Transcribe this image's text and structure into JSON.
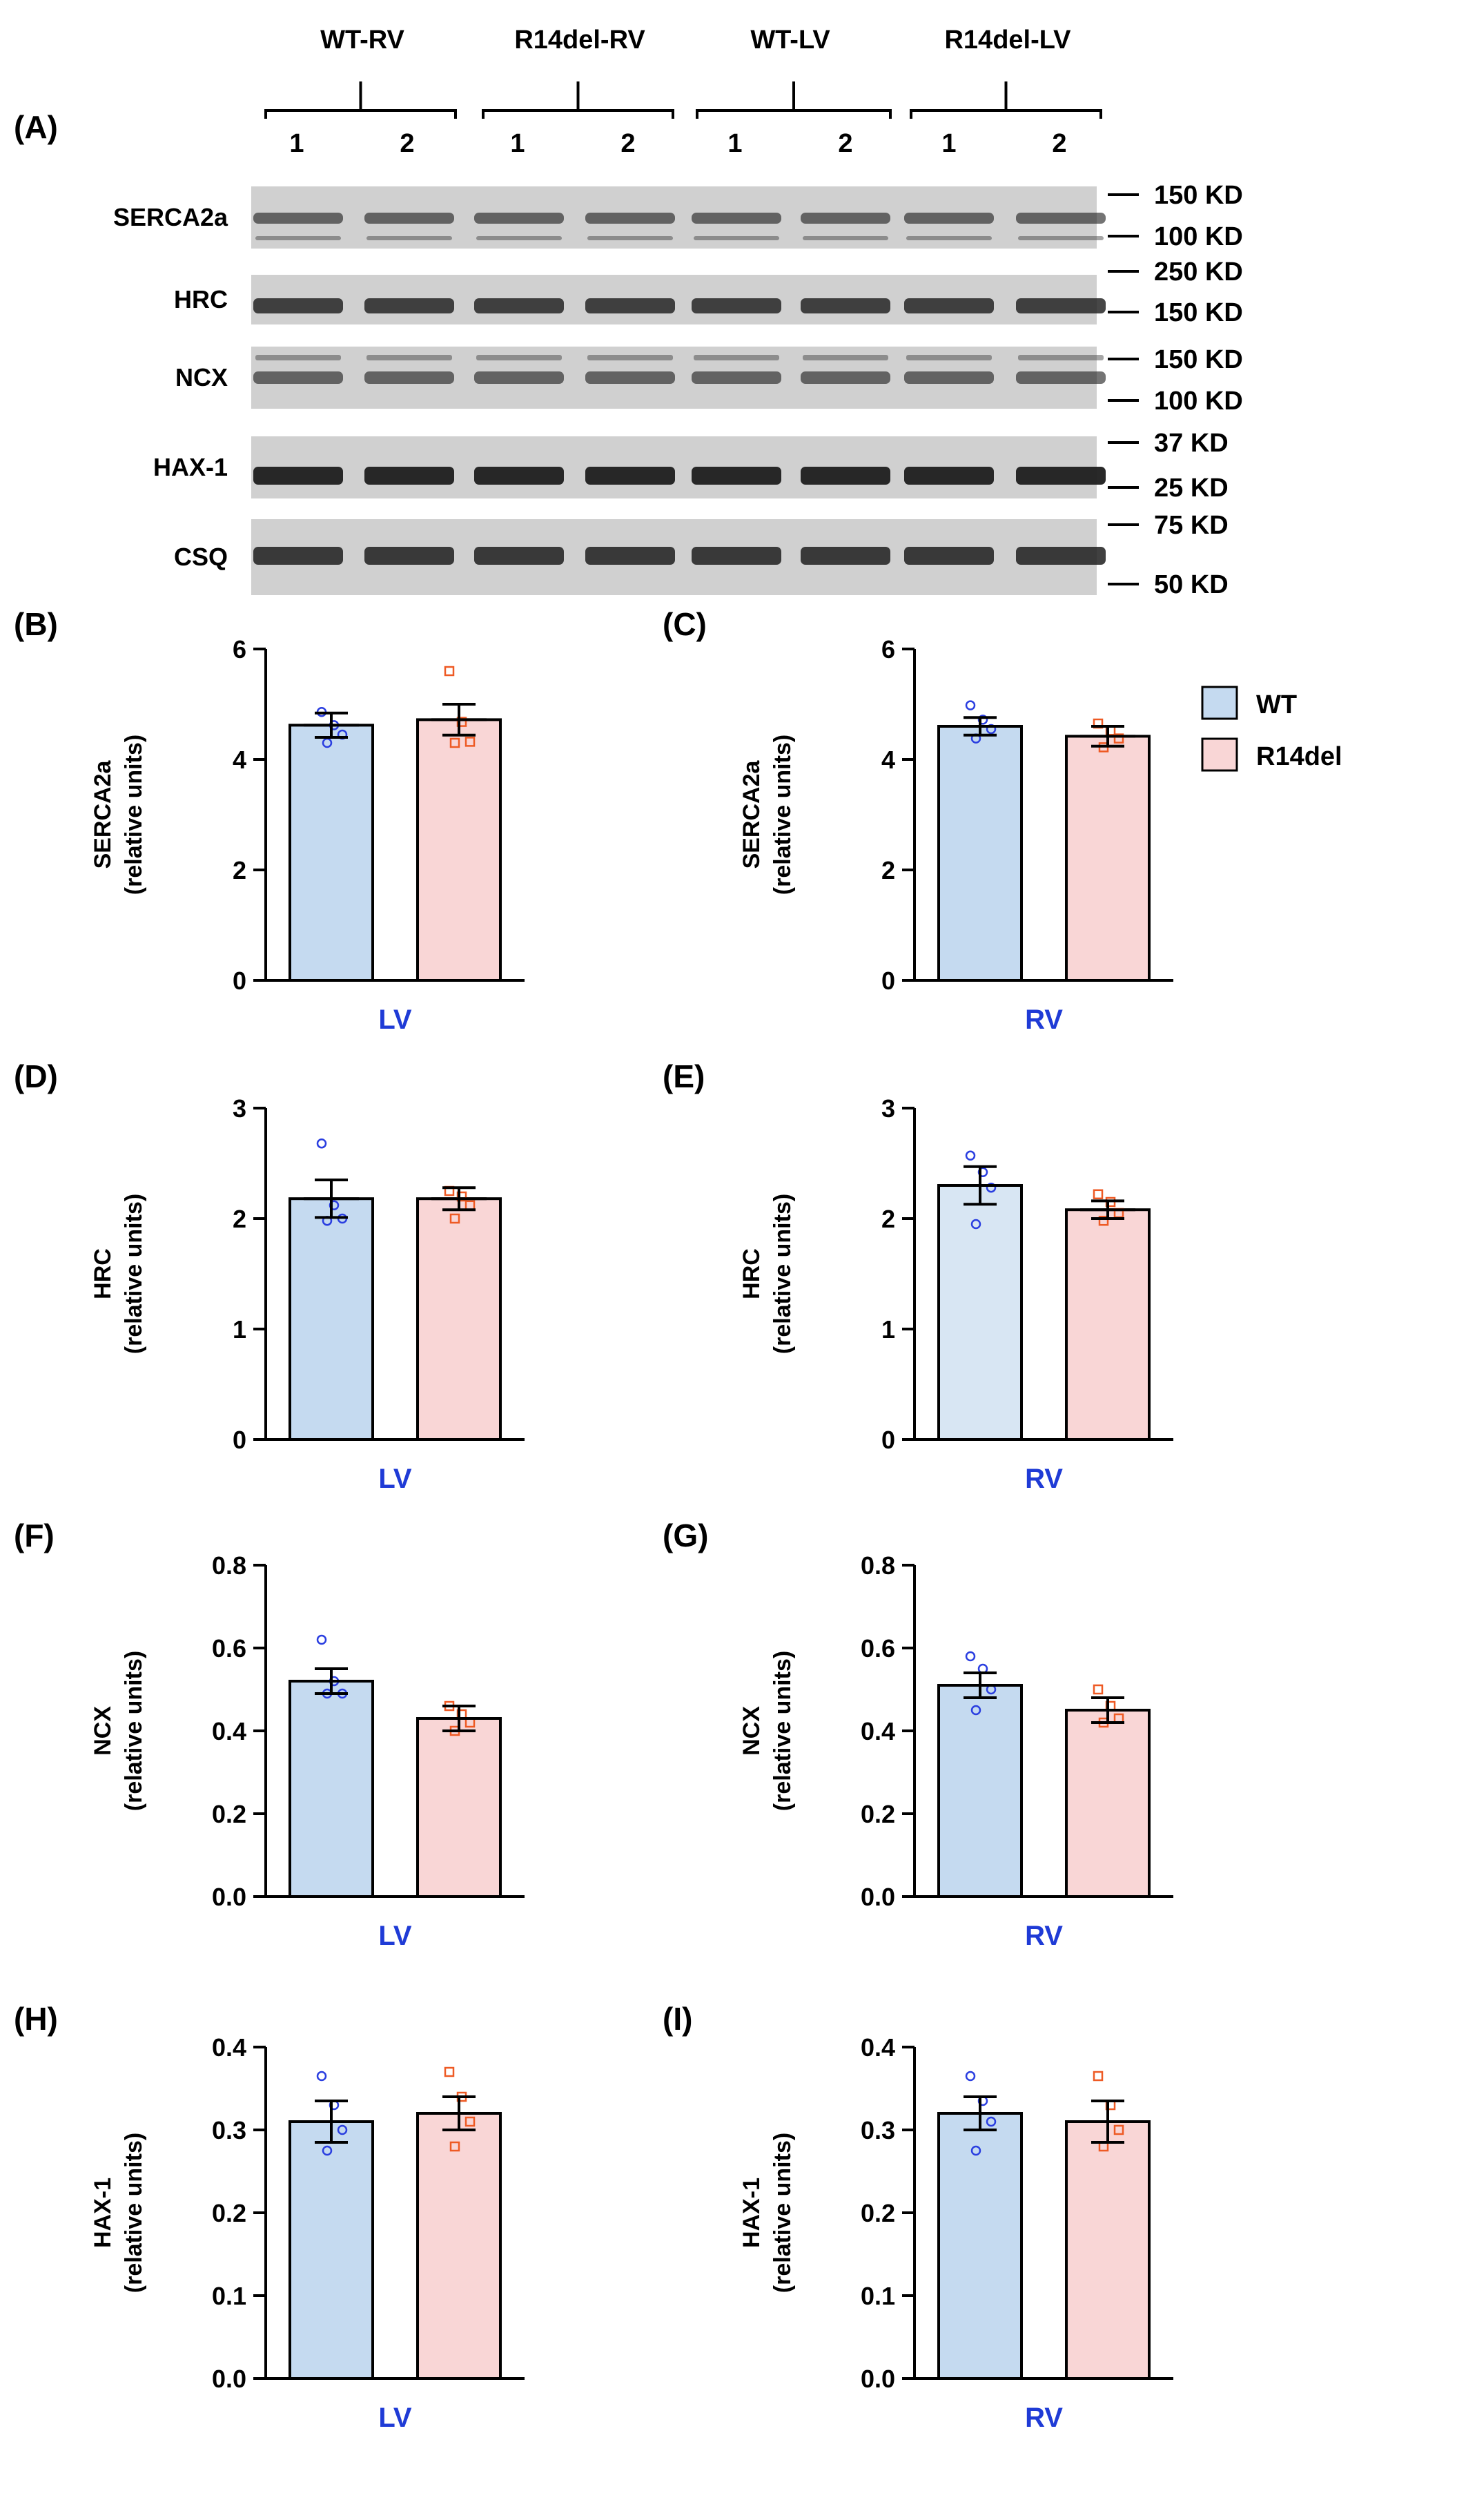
{
  "blot": {
    "panel_letter": "(A)",
    "groups": [
      {
        "label": "WT-RV",
        "lanes": [
          "1",
          "2"
        ]
      },
      {
        "label": "R14del-RV",
        "lanes": [
          "1",
          "2"
        ]
      },
      {
        "label": "WT-LV",
        "lanes": [
          "1",
          "2"
        ]
      },
      {
        "label": "R14del-LV",
        "lanes": [
          "1",
          "2"
        ]
      }
    ],
    "rows": [
      {
        "protein": "SERCA2a",
        "markers": [
          "150 KD",
          "100 KD"
        ]
      },
      {
        "protein": "HRC",
        "markers": [
          "250 KD",
          "150 KD"
        ]
      },
      {
        "protein": "NCX",
        "markers": [
          "150 KD",
          "100 KD"
        ]
      },
      {
        "protein": "HAX-1",
        "markers": [
          "37 KD",
          "25 KD"
        ]
      },
      {
        "protein": "CSQ",
        "markers": [
          "75 KD",
          "50 KD"
        ]
      }
    ]
  },
  "legend": [
    {
      "label": "WT",
      "color": "#c5daf0"
    },
    {
      "label": "R14del",
      "color": "#f9d6d6"
    }
  ],
  "colors": {
    "wt_point": "#2a3ee0",
    "r14_point": "#ee5a24",
    "xlabel": "#1f3bd6"
  },
  "chart_data": [
    {
      "panel": "(B)",
      "type": "bar",
      "ylabel_line1": "SERCA2a",
      "ylabel_line2": "(relative units)",
      "xlabel": "LV",
      "ylim": [
        0,
        6
      ],
      "yticks": [
        "0",
        "2",
        "4",
        "6"
      ],
      "categories": [
        "WT",
        "R14del"
      ],
      "values": [
        4.62,
        4.72
      ],
      "errors": [
        0.22,
        0.28
      ],
      "points": [
        [
          4.86,
          4.62,
          4.45,
          4.3
        ],
        [
          5.6,
          4.68,
          4.32,
          4.3
        ]
      ],
      "bar_colors": [
        "#c5daf0",
        "#f9d6d6"
      ]
    },
    {
      "panel": "(C)",
      "type": "bar",
      "ylabel_line1": "SERCA2a",
      "ylabel_line2": "(relative units)",
      "xlabel": "RV",
      "ylim": [
        0,
        6
      ],
      "yticks": [
        "0",
        "2",
        "4",
        "6"
      ],
      "categories": [
        "WT",
        "R14del"
      ],
      "values": [
        4.6,
        4.42
      ],
      "errors": [
        0.16,
        0.18
      ],
      "points": [
        [
          4.98,
          4.72,
          4.55,
          4.38
        ],
        [
          4.65,
          4.52,
          4.38,
          4.22
        ]
      ],
      "bar_colors": [
        "#c5daf0",
        "#f9d6d6"
      ]
    },
    {
      "panel": "(D)",
      "type": "bar",
      "ylabel_line1": "HRC",
      "ylabel_line2": "(relative units)",
      "xlabel": "LV",
      "ylim": [
        0,
        3
      ],
      "yticks": [
        "0",
        "1",
        "2",
        "3"
      ],
      "categories": [
        "WT",
        "R14del"
      ],
      "values": [
        2.18,
        2.18
      ],
      "errors": [
        0.17,
        0.1
      ],
      "points": [
        [
          2.68,
          2.12,
          2.0,
          1.98
        ],
        [
          2.25,
          2.2,
          2.12,
          2.0
        ]
      ],
      "bar_colors": [
        "#c5daf0",
        "#f9d6d6"
      ]
    },
    {
      "panel": "(E)",
      "type": "bar",
      "ylabel_line1": "HRC",
      "ylabel_line2": "(relative units)",
      "xlabel": "RV",
      "ylim": [
        0,
        3
      ],
      "yticks": [
        "0",
        "1",
        "2",
        "3"
      ],
      "categories": [
        "WT",
        "R14del"
      ],
      "values": [
        2.3,
        2.08
      ],
      "errors": [
        0.17,
        0.08
      ],
      "points": [
        [
          2.57,
          2.42,
          2.28,
          1.95
        ],
        [
          2.22,
          2.15,
          2.05,
          1.98
        ]
      ],
      "bar_colors": [
        "#d8e6f3",
        "#f9d6d6"
      ]
    },
    {
      "panel": "(F)",
      "type": "bar",
      "ylabel_line1": "NCX",
      "ylabel_line2": "(relative units)",
      "xlabel": "LV",
      "ylim": [
        0,
        0.8
      ],
      "yticks": [
        "0.0",
        "0.2",
        "0.4",
        "0.6",
        "0.8"
      ],
      "categories": [
        "WT",
        "R14del"
      ],
      "values": [
        0.52,
        0.43
      ],
      "errors": [
        0.03,
        0.03
      ],
      "points": [
        [
          0.62,
          0.52,
          0.49,
          0.49
        ],
        [
          0.46,
          0.44,
          0.42,
          0.4
        ]
      ],
      "bar_colors": [
        "#c5daf0",
        "#f9d6d6"
      ]
    },
    {
      "panel": "(G)",
      "type": "bar",
      "ylabel_line1": "NCX",
      "ylabel_line2": "(relative units)",
      "xlabel": "RV",
      "ylim": [
        0,
        0.8
      ],
      "yticks": [
        "0.0",
        "0.2",
        "0.4",
        "0.6",
        "0.8"
      ],
      "categories": [
        "WT",
        "R14del"
      ],
      "values": [
        0.51,
        0.45
      ],
      "errors": [
        0.03,
        0.03
      ],
      "points": [
        [
          0.58,
          0.55,
          0.5,
          0.45
        ],
        [
          0.5,
          0.46,
          0.43,
          0.42
        ]
      ],
      "bar_colors": [
        "#c5daf0",
        "#f9d6d6"
      ]
    },
    {
      "panel": "(H)",
      "type": "bar",
      "ylabel_line1": "HAX-1",
      "ylabel_line2": "(relative units)",
      "xlabel": "LV",
      "ylim": [
        0,
        0.4
      ],
      "yticks": [
        "0.0",
        "0.1",
        "0.2",
        "0.3",
        "0.4"
      ],
      "categories": [
        "WT",
        "R14del"
      ],
      "values": [
        0.31,
        0.32
      ],
      "errors": [
        0.025,
        0.02
      ],
      "points": [
        [
          0.365,
          0.33,
          0.3,
          0.275
        ],
        [
          0.37,
          0.34,
          0.31,
          0.28
        ]
      ],
      "bar_colors": [
        "#c5daf0",
        "#f9d6d6"
      ]
    },
    {
      "panel": "(I)",
      "type": "bar",
      "ylabel_line1": "HAX-1",
      "ylabel_line2": "(relative units)",
      "xlabel": "RV",
      "ylim": [
        0,
        0.4
      ],
      "yticks": [
        "0.0",
        "0.1",
        "0.2",
        "0.3",
        "0.4"
      ],
      "categories": [
        "WT",
        "R14del"
      ],
      "values": [
        0.32,
        0.31
      ],
      "errors": [
        0.02,
        0.025
      ],
      "points": [
        [
          0.365,
          0.335,
          0.31,
          0.275
        ],
        [
          0.365,
          0.33,
          0.3,
          0.28
        ]
      ],
      "bar_colors": [
        "#c5daf0",
        "#f9d6d6"
      ]
    }
  ]
}
